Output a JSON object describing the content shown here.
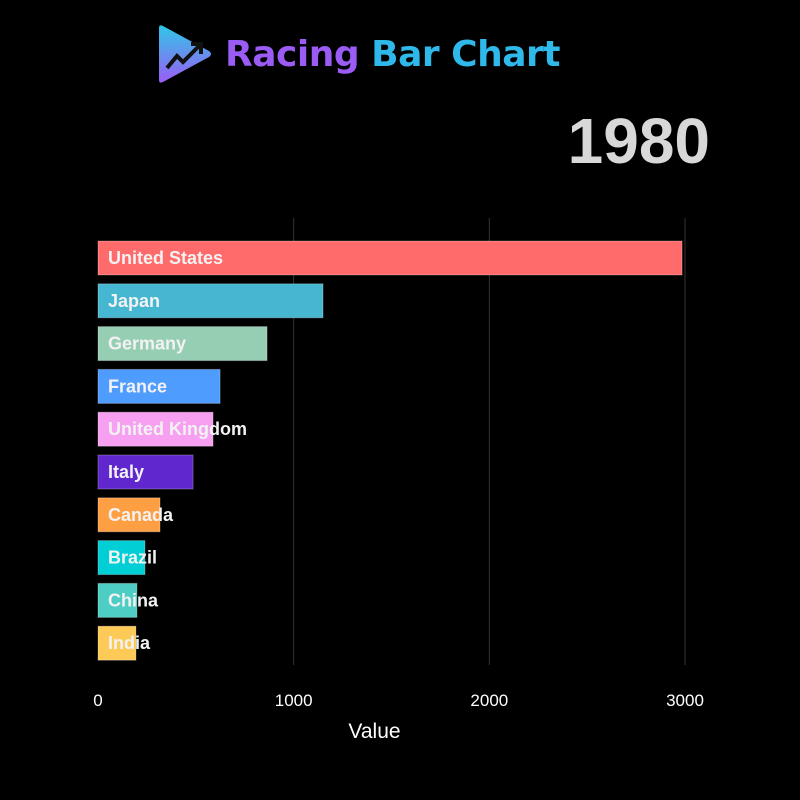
{
  "logo": {
    "text_part1": "Racing",
    "text_part2": "Bar Chart",
    "icon": "play-trend-arrow-icon"
  },
  "chart_data": {
    "type": "bar",
    "orientation": "horizontal",
    "year": "1980",
    "xlabel": "Value",
    "xlim": [
      0,
      3000
    ],
    "xticks": [
      0,
      1000,
      2000,
      3000
    ],
    "grid": true,
    "categories": [
      "United States",
      "Japan",
      "Germany",
      "France",
      "United Kingdom",
      "Italy",
      "Canada",
      "Brazil",
      "China",
      "India"
    ],
    "values": [
      2985,
      1150,
      864,
      624,
      588,
      486,
      317,
      240,
      199,
      194
    ],
    "colors": [
      "#ff6b6b",
      "#45b7d1",
      "#96ceb4",
      "#4f9cff",
      "#f79ff0",
      "#5f27cd",
      "#ff9f43",
      "#00cfd5",
      "#4ecdc4",
      "#feca57"
    ]
  }
}
